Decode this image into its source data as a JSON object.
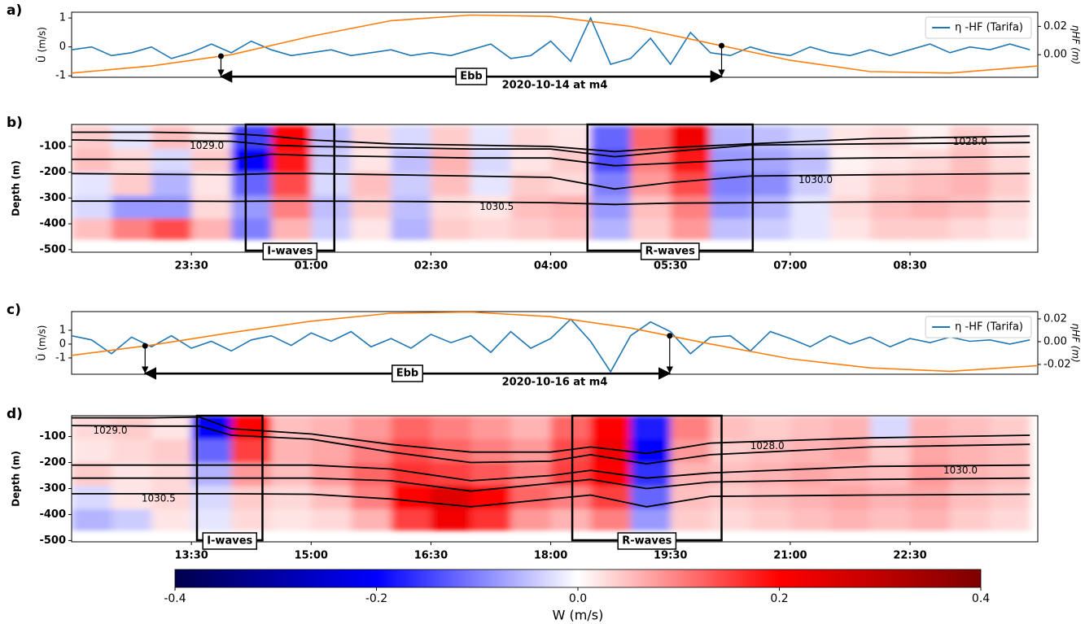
{
  "chart_data": [
    {
      "type": "line",
      "panel_label": "a)",
      "ylabel": "Ū (m/s)",
      "y2label": "ηHF (m)",
      "xlim": [
        22,
        34.1
      ],
      "ylim": [
        -1.05,
        1.2
      ],
      "yticks": [
        -1,
        0,
        1
      ],
      "y2lim": [
        -0.016,
        0.03
      ],
      "y2ticks": [
        {
          "value": 0,
          "label": "0.00"
        },
        {
          "value": 0.02,
          "label": "0.02"
        }
      ],
      "legend": "upper right",
      "series": [
        {
          "name": "η -HF (Tarifa)",
          "color": "#1f77b4",
          "x": [
            22,
            22.25,
            22.5,
            22.75,
            23,
            23.25,
            23.5,
            23.75,
            24,
            24.25,
            24.5,
            24.75,
            25,
            25.25,
            25.5,
            25.75,
            26,
            26.25,
            26.5,
            26.75,
            27,
            27.25,
            27.5,
            27.75,
            28,
            28.25,
            28.5,
            28.75,
            29,
            29.25,
            29.5,
            29.75,
            30,
            30.25,
            30.5,
            30.75,
            31,
            31.25,
            31.5,
            31.75,
            32,
            32.25,
            32.5,
            32.75,
            33,
            33.25,
            33.5,
            33.75,
            34
          ],
          "values": [
            -0.1,
            0,
            -0.3,
            -0.2,
            0,
            -0.4,
            -0.2,
            0.1,
            -0.2,
            0.2,
            -0.1,
            -0.3,
            -0.2,
            -0.1,
            -0.3,
            -0.2,
            -0.1,
            -0.3,
            -0.2,
            -0.3,
            -0.1,
            0.1,
            -0.4,
            -0.3,
            0.2,
            -0.5,
            1.0,
            -0.6,
            -0.4,
            0.3,
            -0.6,
            0.5,
            -0.2,
            -0.3,
            0,
            -0.2,
            -0.3,
            0,
            -0.2,
            -0.3,
            -0.1,
            -0.3,
            -0.1,
            0.1,
            -0.2,
            0,
            -0.1,
            0.1,
            -0.1
          ]
        },
        {
          "color": "#ff7f0e",
          "axis": "y2",
          "x": [
            22,
            23,
            24,
            25,
            26,
            27,
            28,
            29,
            30,
            31,
            32,
            33,
            34.1
          ],
          "values": [
            -0.013,
            -0.008,
            0.0,
            0.013,
            0.024,
            0.028,
            0.027,
            0.02,
            0.008,
            -0.004,
            -0.012,
            -0.013,
            -0.008
          ]
        }
      ],
      "ebb": {
        "label": "Ebb",
        "x": [
          23.87,
          30.14
        ]
      },
      "date_label": "2020-10-14 at m4"
    },
    {
      "type": "heatmap",
      "panel_label": "b)",
      "ylabel": "Depth (m)",
      "xlim": [
        22,
        34.1
      ],
      "ylim": [
        -510,
        -15
      ],
      "yticks": [
        -500,
        -400,
        -300,
        -200,
        -100
      ],
      "xticks": [
        {
          "value": 23.5,
          "label": "23:30"
        },
        {
          "value": 25,
          "label": "01:00"
        },
        {
          "value": 26.5,
          "label": "02:30"
        },
        {
          "value": 28,
          "label": "04:00"
        },
        {
          "value": 29.5,
          "label": "05:30"
        },
        {
          "value": 31,
          "label": "07:00"
        },
        {
          "value": 32.5,
          "label": "08:30"
        }
      ],
      "x_edges": [
        22,
        22.5,
        23,
        23.5,
        24,
        24.5,
        25,
        25.5,
        26,
        26.5,
        27,
        27.5,
        28,
        28.5,
        29,
        29.5,
        30,
        30.5,
        31,
        31.5,
        32,
        32.5,
        33,
        33.5,
        34
      ],
      "y_edges": [
        -20,
        -110,
        -200,
        -290,
        -380,
        -460
      ],
      "values": [
        [
          0.04,
          -0.02,
          0.05,
          0.02,
          -0.15,
          0.2,
          -0.05,
          0.03,
          -0.03,
          0.04,
          -0.02,
          0.03,
          0.02,
          -0.12,
          0.12,
          0.22,
          -0.06,
          -0.05,
          -0.03,
          0.02,
          0.03,
          0.01,
          0.04,
          0.02
        ],
        [
          0.05,
          0.03,
          -0.03,
          0.04,
          -0.2,
          0.18,
          -0.04,
          0.02,
          -0.05,
          0.06,
          -0.03,
          0.02,
          0.04,
          -0.14,
          0.1,
          0.18,
          -0.08,
          -0.07,
          -0.05,
          0.01,
          0.02,
          0.03,
          0.05,
          0.03
        ],
        [
          -0.02,
          0.04,
          -0.06,
          0.02,
          -0.12,
          0.14,
          -0.03,
          0.05,
          -0.04,
          0.05,
          -0.02,
          0.04,
          0.03,
          -0.1,
          0.08,
          0.14,
          -0.1,
          -0.09,
          -0.04,
          0.02,
          0.04,
          0.05,
          0.06,
          0.04
        ],
        [
          -0.03,
          -0.08,
          -0.08,
          0.03,
          -0.08,
          0.1,
          -0.05,
          0.04,
          -0.05,
          0.03,
          0.02,
          0.05,
          0.06,
          -0.08,
          0.05,
          0.1,
          -0.08,
          -0.06,
          -0.02,
          0.03,
          0.05,
          0.06,
          0.05,
          0.03
        ],
        [
          0.05,
          0.1,
          0.14,
          0.06,
          -0.1,
          0.06,
          -0.04,
          0.02,
          -0.06,
          0.04,
          0.03,
          0.04,
          0.05,
          -0.06,
          0.04,
          0.08,
          -0.05,
          -0.04,
          -0.02,
          0.02,
          0.04,
          0.04,
          0.03,
          0.02
        ]
      ],
      "contours": [
        {
          "label": "1028.0",
          "x": [
            22,
            23,
            24,
            24.5,
            25,
            26,
            27,
            28,
            28.8,
            29.5,
            30.5,
            32,
            34
          ],
          "y": [
            -45,
            -45,
            -50,
            -60,
            -75,
            -90,
            -95,
            -100,
            -120,
            -105,
            -90,
            -70,
            -60
          ]
        },
        {
          "label": "1029.0",
          "x": [
            22,
            23,
            24,
            24.5,
            25,
            26,
            27,
            28,
            28.8,
            29.5,
            30.5,
            32,
            34
          ],
          "y": [
            -75,
            -78,
            -80,
            -95,
            -100,
            -105,
            -110,
            -110,
            -140,
            -120,
            -95,
            -90,
            -85
          ]
        },
        {
          "x": [
            22,
            23,
            24,
            24.5,
            25,
            26,
            27,
            28,
            28.8,
            29.5,
            30.5,
            32,
            34
          ],
          "y": [
            -150,
            -150,
            -150,
            -130,
            -135,
            -140,
            -145,
            -145,
            -175,
            -165,
            -150,
            -145,
            -140
          ]
        },
        {
          "label": "1030.0",
          "x": [
            22,
            23,
            24,
            24.5,
            25,
            26,
            27,
            28,
            28.8,
            29.5,
            30.5,
            32,
            34
          ],
          "y": [
            -205,
            -208,
            -210,
            -205,
            -205,
            -210,
            -215,
            -220,
            -265,
            -240,
            -215,
            -210,
            -205
          ]
        },
        {
          "label": "1030.5",
          "x": [
            22,
            23,
            24,
            24.5,
            25,
            26,
            27,
            28,
            28.8,
            29.5,
            30.5,
            32,
            34
          ],
          "y": [
            -312,
            -312,
            -313,
            -312,
            -312,
            -313,
            -315,
            -318,
            -325,
            -320,
            -318,
            -315,
            -313
          ]
        }
      ],
      "boxes": [
        {
          "label": "I-waves",
          "x": [
            24.18,
            25.29
          ]
        },
        {
          "label": "R-waves",
          "x": [
            28.46,
            30.53
          ]
        }
      ]
    },
    {
      "type": "line",
      "panel_label": "c)",
      "ylabel": "Ū (m/s)",
      "y2label": "ηHF (m)",
      "xlim": [
        12,
        24.1
      ],
      "ylim": [
        -2.18,
        2.35
      ],
      "yticks": [
        -1,
        0,
        1
      ],
      "y2lim": [
        -0.0286,
        0.0264
      ],
      "y2ticks": [
        {
          "value": -0.02,
          "label": "-0.02"
        },
        {
          "value": 0,
          "label": "0.00"
        },
        {
          "value": 0.02,
          "label": "0.02"
        }
      ],
      "legend": "upper right",
      "series": [
        {
          "name": "η -HF (Tarifa)",
          "color": "#1f77b4",
          "x": [
            12,
            12.25,
            12.5,
            12.75,
            13,
            13.25,
            13.5,
            13.75,
            14,
            14.25,
            14.5,
            14.75,
            15,
            15.25,
            15.5,
            15.75,
            16,
            16.25,
            16.5,
            16.75,
            17,
            17.25,
            17.5,
            17.75,
            18,
            18.25,
            18.5,
            18.75,
            19,
            19.25,
            19.5,
            19.75,
            20,
            20.25,
            20.5,
            20.75,
            21,
            21.25,
            21.5,
            21.75,
            22,
            22.25,
            22.5,
            22.75,
            23,
            23.25,
            23.5,
            23.75,
            24
          ],
          "values": [
            0.6,
            0.3,
            -0.7,
            0.5,
            -0.2,
            0.6,
            -0.3,
            0.2,
            -0.5,
            0.3,
            0.6,
            -0.1,
            0.8,
            0.2,
            0.9,
            -0.2,
            0.4,
            -0.3,
            0.7,
            0.1,
            0.6,
            -0.6,
            0.9,
            -0.3,
            0.4,
            1.8,
            0.2,
            -2.0,
            0.6,
            1.6,
            0.9,
            -0.7,
            0.5,
            0.6,
            -0.5,
            0.9,
            0.4,
            -0.2,
            0.6,
            0,
            0.5,
            -0.2,
            0.4,
            0.1,
            0.5,
            0.2,
            0.3,
            0,
            0.3
          ]
        },
        {
          "color": "#ff7f0e",
          "axis": "y2",
          "x": [
            12,
            13,
            14,
            15,
            16,
            17,
            18,
            19,
            20,
            21,
            22,
            23,
            24.1
          ],
          "values": [
            -0.012,
            -0.003,
            0.008,
            0.018,
            0.025,
            0.026,
            0.022,
            0.012,
            -0.002,
            -0.015,
            -0.023,
            -0.026,
            -0.021
          ]
        }
      ],
      "ebb": {
        "label": "Ebb",
        "x": [
          12.92,
          19.49
        ]
      },
      "date_label": "2020-10-16 at m4"
    },
    {
      "type": "heatmap",
      "panel_label": "d)",
      "ylabel": "Depth (m)",
      "xlim": [
        12,
        24.1
      ],
      "ylim": [
        -505,
        -20
      ],
      "yticks": [
        -500,
        -400,
        -300,
        -200,
        -100
      ],
      "xticks": [
        {
          "value": 13.5,
          "label": "13:30"
        },
        {
          "value": 15,
          "label": "15:00"
        },
        {
          "value": 16.5,
          "label": "16:30"
        },
        {
          "value": 18,
          "label": "18:00"
        },
        {
          "value": 19.5,
          "label": "19:30"
        },
        {
          "value": 21,
          "label": "21:00"
        },
        {
          "value": 22.5,
          "label": "22:30"
        }
      ],
      "x_edges": [
        12,
        12.5,
        13,
        13.5,
        14,
        14.5,
        15,
        15.5,
        16,
        16.5,
        17,
        17.5,
        18,
        18.5,
        19,
        19.5,
        20,
        20.5,
        21,
        21.5,
        22,
        22.5,
        23,
        23.5,
        24
      ],
      "y_edges": [
        -20,
        -110,
        -200,
        -290,
        -380,
        -460
      ],
      "values": [
        [
          0.03,
          0.04,
          0.02,
          -0.2,
          0.2,
          0.05,
          0.06,
          0.08,
          0.12,
          0.1,
          0.08,
          0.06,
          0.12,
          0.2,
          -0.18,
          0.1,
          0.05,
          0.04,
          0.05,
          0.06,
          -0.03,
          0.06,
          0.05,
          0.04
        ],
        [
          0.02,
          0.03,
          0.04,
          -0.12,
          0.15,
          0.06,
          0.07,
          0.1,
          0.14,
          0.12,
          0.1,
          0.08,
          0.14,
          0.22,
          -0.2,
          0.08,
          0.04,
          0.05,
          0.06,
          0.07,
          0.04,
          0.07,
          0.06,
          0.05
        ],
        [
          0.04,
          0.02,
          0.03,
          -0.06,
          0.08,
          0.05,
          0.08,
          0.12,
          0.16,
          0.15,
          0.13,
          0.1,
          0.15,
          0.2,
          -0.16,
          0.06,
          0.05,
          0.06,
          0.07,
          0.06,
          0.05,
          0.08,
          0.06,
          0.05
        ],
        [
          -0.03,
          0.02,
          0.03,
          -0.03,
          0.04,
          0.03,
          0.05,
          0.1,
          0.2,
          0.25,
          0.2,
          0.12,
          0.1,
          0.15,
          -0.12,
          0.05,
          0.04,
          0.05,
          0.06,
          0.07,
          0.06,
          0.07,
          0.05,
          0.04
        ],
        [
          -0.06,
          -0.04,
          0.02,
          -0.02,
          0.03,
          0.02,
          0.03,
          0.06,
          0.15,
          0.22,
          0.16,
          0.08,
          0.06,
          0.1,
          -0.08,
          0.04,
          0.03,
          0.04,
          0.05,
          0.06,
          0.05,
          0.06,
          0.04,
          0.03
        ]
      ],
      "contours": [
        {
          "label": "1028.0",
          "x": [
            12,
            13,
            13.6,
            14,
            15,
            16,
            17,
            18,
            18.5,
            19.2,
            20,
            22,
            24
          ],
          "y": [
            -28,
            -28,
            -25,
            -70,
            -90,
            -130,
            -160,
            -160,
            -140,
            -165,
            -125,
            -105,
            -95
          ]
        },
        {
          "label": "1029.0",
          "x": [
            12,
            13,
            13.6,
            14,
            15,
            16,
            17,
            18,
            18.5,
            19.2,
            20,
            22,
            24
          ],
          "y": [
            -58,
            -60,
            -60,
            -95,
            -110,
            -160,
            -200,
            -195,
            -170,
            -205,
            -170,
            -140,
            -130
          ]
        },
        {
          "label": "1030.0",
          "x": [
            12,
            13,
            13.6,
            14,
            15,
            16,
            17,
            18,
            18.5,
            19.2,
            20,
            22,
            24
          ],
          "y": [
            -210,
            -210,
            -210,
            -210,
            -210,
            -225,
            -270,
            -250,
            -230,
            -260,
            -240,
            -215,
            -210
          ]
        },
        {
          "x": [
            12,
            13,
            13.6,
            14,
            15,
            16,
            17,
            18,
            18.5,
            19.2,
            20,
            22,
            24
          ],
          "y": [
            -260,
            -260,
            -260,
            -260,
            -260,
            -270,
            -310,
            -280,
            -265,
            -300,
            -275,
            -265,
            -260
          ]
        },
        {
          "label": "1030.5",
          "x": [
            12,
            13,
            13.6,
            14,
            15,
            16,
            17,
            18,
            18.5,
            19.2,
            20,
            22,
            24
          ],
          "y": [
            -320,
            -320,
            -320,
            -320,
            -322,
            -340,
            -370,
            -340,
            -325,
            -370,
            -330,
            -325,
            -322
          ]
        }
      ],
      "boxes": [
        {
          "label": "I-waves",
          "x": [
            13.57,
            14.39
          ]
        },
        {
          "label": "R-waves",
          "x": [
            18.27,
            20.14
          ]
        }
      ]
    },
    {
      "type": "colorbar",
      "label": "W (m/s)",
      "lim": [
        -0.4,
        0.4
      ],
      "ticks": [
        -0.4,
        -0.2,
        {
          "value": 0,
          "label": "0.0"
        },
        0.2,
        0.4
      ],
      "cmap": [
        "#00004c",
        "#0000ff",
        "#ffffff",
        "#ff0000",
        "#7f0000"
      ]
    }
  ]
}
